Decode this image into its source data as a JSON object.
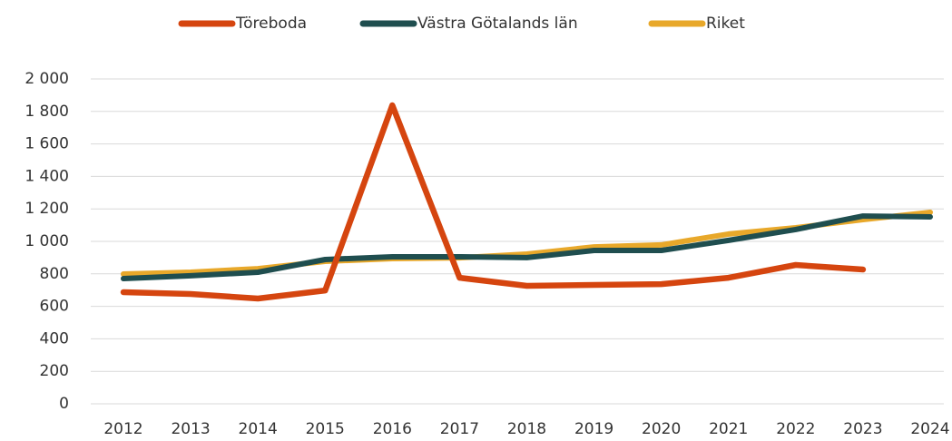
{
  "chart_data": {
    "type": "line",
    "categories": [
      "2012",
      "2013",
      "2014",
      "2015",
      "2016",
      "2017",
      "2018",
      "2019",
      "2020",
      "2021",
      "2022",
      "2023",
      "2024"
    ],
    "series": [
      {
        "name": "Töreboda",
        "color": "#d5450f",
        "values": [
          687,
          676,
          648,
          698,
          1838,
          776,
          726,
          732,
          737,
          776,
          855,
          827,
          null
        ]
      },
      {
        "name": "Västra Götalands län",
        "color": "#1f4e4f",
        "values": [
          771,
          788,
          810,
          888,
          905,
          905,
          900,
          944,
          944,
          1006,
          1073,
          1156,
          1151
        ]
      },
      {
        "name": "Riket",
        "color": "#e8a82a",
        "values": [
          799,
          810,
          832,
          877,
          894,
          899,
          922,
          966,
          978,
          1045,
          1084,
          1134,
          1179
        ]
      }
    ],
    "ylim": [
      0,
      2000
    ],
    "yticks": [
      0,
      200,
      400,
      600,
      800,
      {
        "value": 1000,
        "label": "1 000"
      },
      {
        "value": 1200,
        "label": "1 200"
      },
      {
        "value": 1400,
        "label": "1 400"
      },
      {
        "value": 1600,
        "label": "1 600"
      },
      {
        "value": 1800,
        "label": "1 800"
      },
      {
        "value": 2000,
        "label": "2 000"
      }
    ],
    "grid": true,
    "legend": "top"
  }
}
